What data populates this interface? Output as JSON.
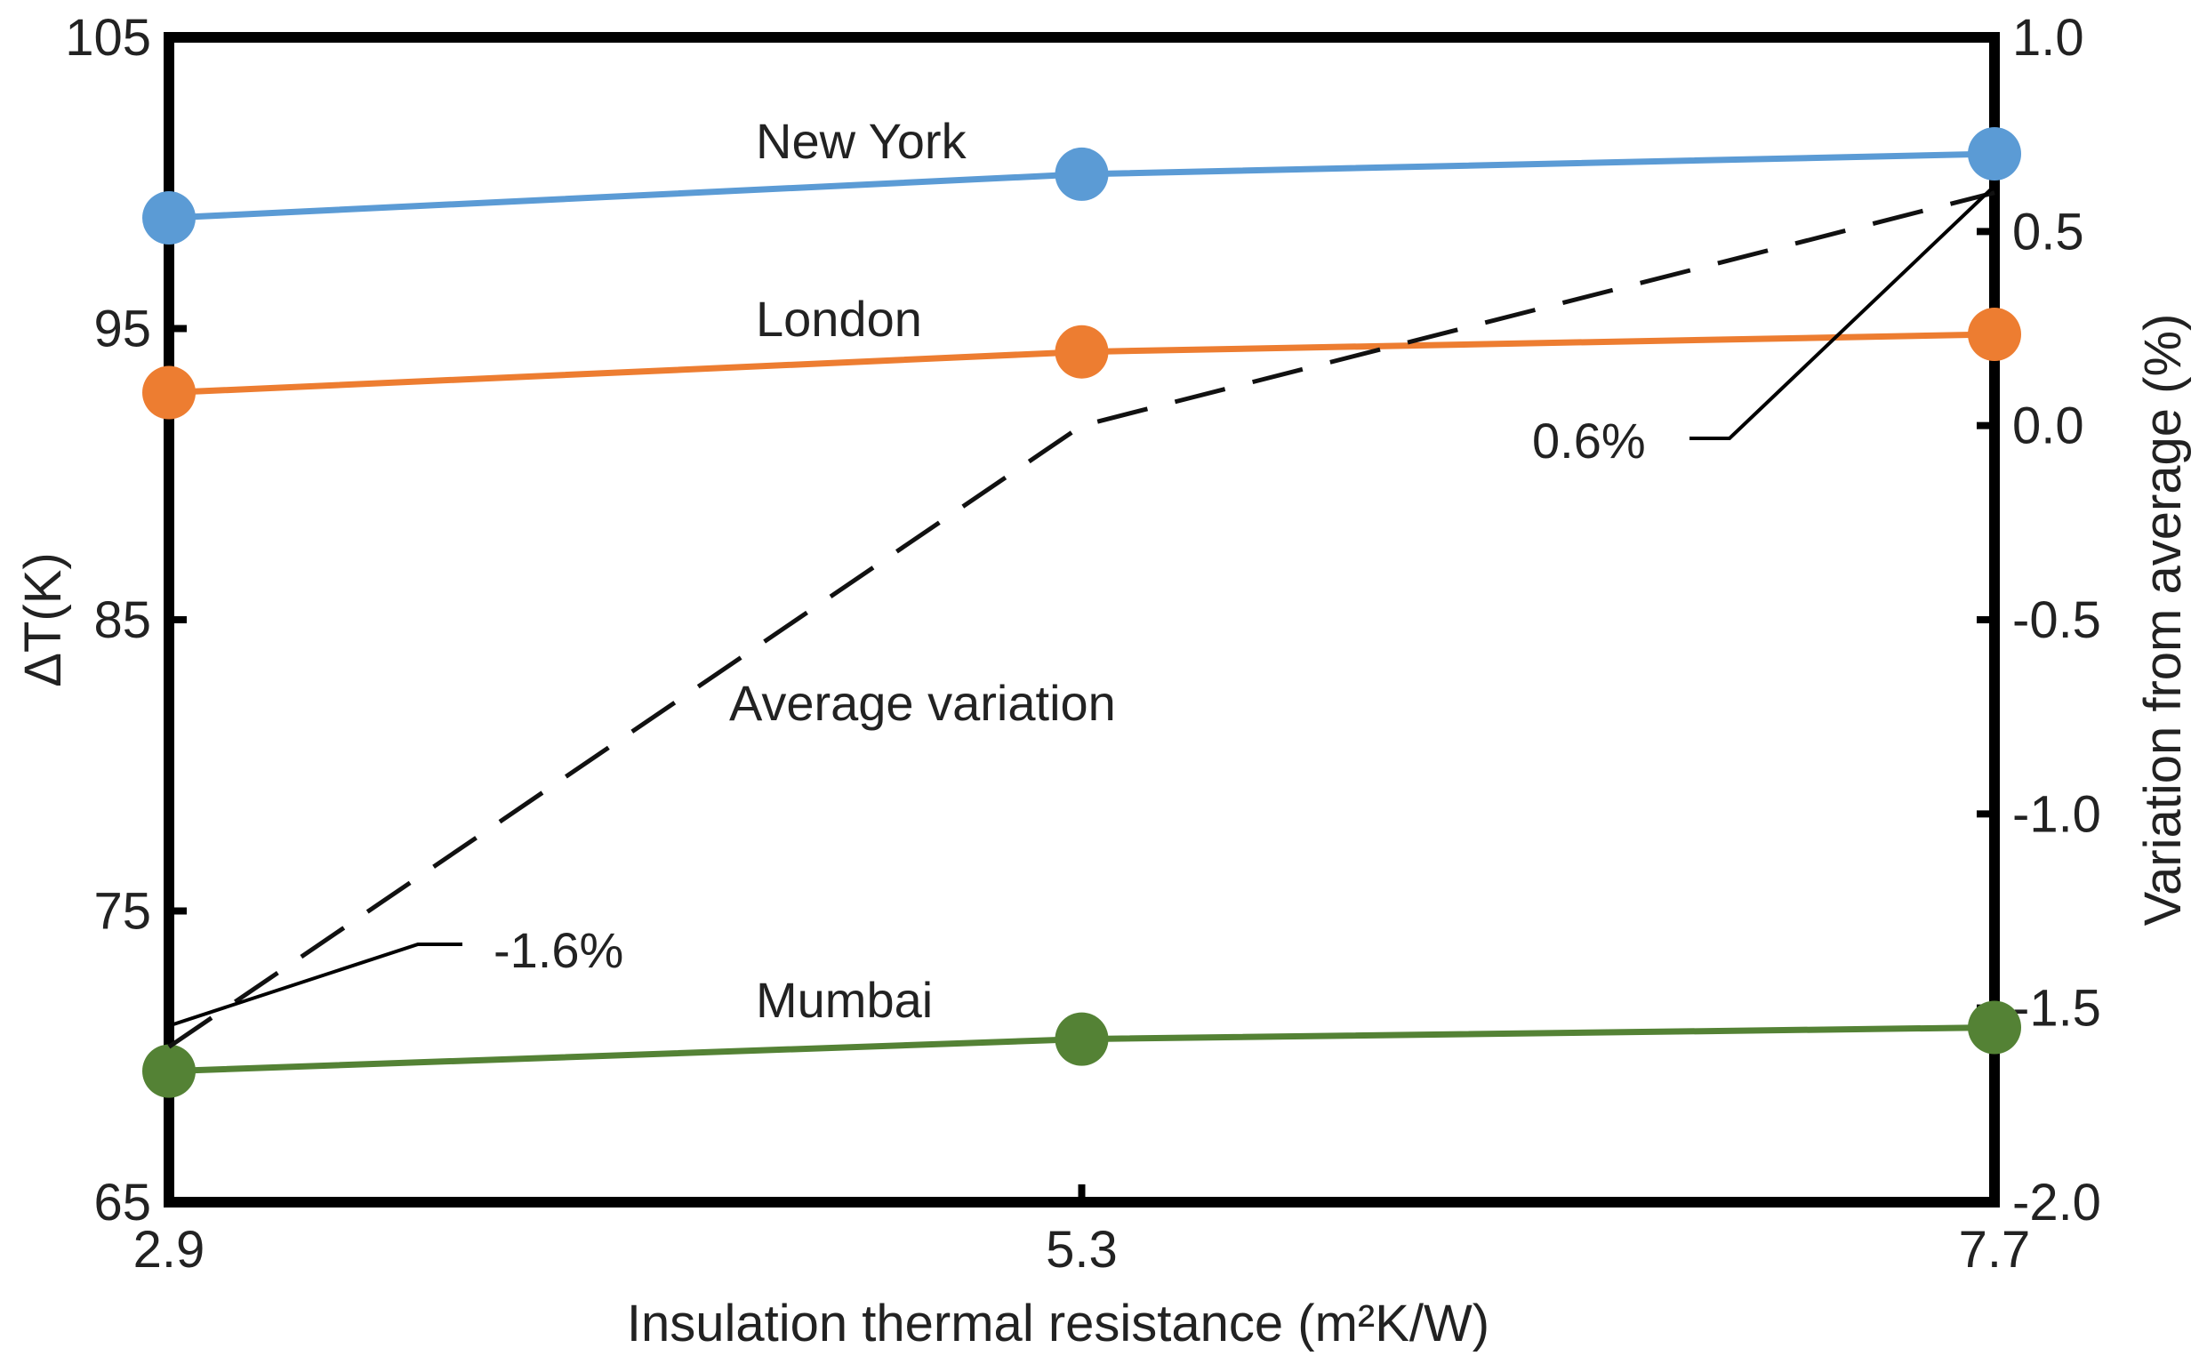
{
  "chart_data": {
    "type": "line",
    "x": [
      2.9,
      5.3,
      7.7
    ],
    "x_tick_labels": [
      "2.9",
      "5.3",
      "7.7"
    ],
    "xlabel": "Insulation thermal resistance (m²K/W)",
    "ylabel_left": "ΔT(K)",
    "ylabel_right": "Variation from average (%)",
    "ylim_left": [
      65,
      105
    ],
    "y_left_ticks": [
      65,
      75,
      85,
      95,
      105
    ],
    "y_left_tick_labels": [
      "65",
      "75",
      "85",
      "95",
      "105"
    ],
    "ylim_right": [
      -2.0,
      1.0
    ],
    "y_right_ticks": [
      -2.0,
      -1.5,
      -1.0,
      -0.5,
      0.0,
      0.5,
      1.0
    ],
    "y_right_tick_labels": [
      "-2.0",
      "-1.5",
      "-1.0",
      "-0.5",
      "0.0",
      "0.5",
      "1.0"
    ],
    "series": [
      {
        "name": "New York",
        "axis": "left",
        "color": "#5b9bd5",
        "values": [
          98.8,
          100.3,
          101.0
        ]
      },
      {
        "name": "London",
        "axis": "left",
        "color": "#ed7d31",
        "values": [
          92.8,
          94.2,
          94.8
        ]
      },
      {
        "name": "Mumbai",
        "axis": "left",
        "color": "#548235",
        "values": [
          69.5,
          70.6,
          71.0
        ]
      },
      {
        "name": "Average variation",
        "axis": "right",
        "color": "#111111",
        "dashed": true,
        "values": [
          -1.6,
          0.0,
          0.6
        ]
      }
    ],
    "annotations": [
      {
        "text": "-1.6%",
        "x": 2.9,
        "y": -1.6,
        "axis": "right"
      },
      {
        "text": "0.6%",
        "x": 7.7,
        "y": 0.6,
        "axis": "right"
      }
    ]
  }
}
